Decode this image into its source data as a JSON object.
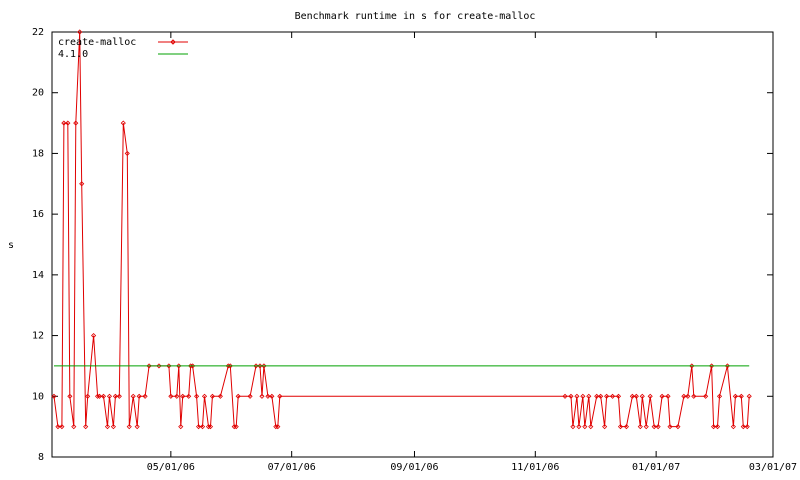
{
  "chart_data": {
    "type": "line",
    "title": "Benchmark runtime in s for create-malloc",
    "y_label": "s",
    "x": [
      "03/03/06",
      "03/05/06",
      "03/07/06",
      "03/08/06",
      "03/10/06",
      "03/11/06",
      "03/13/06",
      "03/14/06",
      "03/16/06",
      "03/17/06",
      "03/19/06",
      "03/20/06",
      "03/23/06",
      "03/25/06",
      "03/26/06",
      "03/28/06",
      "03/30/06",
      "03/31/06",
      "04/02/06",
      "04/03/06",
      "04/05/06",
      "04/07/06",
      "04/09/06",
      "04/10/06",
      "04/12/06",
      "04/14/06",
      "04/15/06",
      "04/18/06",
      "04/20/06",
      "04/25/06",
      "04/30/06",
      "05/01/06",
      "05/04/06",
      "05/05/06",
      "05/06/06",
      "05/07/06",
      "05/10/06",
      "05/11/06",
      "05/12/06",
      "05/14/06",
      "05/15/06",
      "05/17/06",
      "05/18/06",
      "05/20/06",
      "05/21/06",
      "05/22/06",
      "05/26/06",
      "05/30/06",
      "05/31/06",
      "06/02/06",
      "06/03/06",
      "06/04/06",
      "06/10/06",
      "06/13/06",
      "06/15/06",
      "06/16/06",
      "06/17/06",
      "06/19/06",
      "06/21/06",
      "06/23/06",
      "06/24/06",
      "06/25/06",
      "11/16/06",
      "11/19/06",
      "11/20/06",
      "11/22/06",
      "11/23/06",
      "11/25/06",
      "11/26/06",
      "11/28/06",
      "11/29/06",
      "12/02/06",
      "12/04/06",
      "12/06/06",
      "12/07/06",
      "12/10/06",
      "12/13/06",
      "12/14/06",
      "12/17/06",
      "12/20/06",
      "12/22/06",
      "12/24/06",
      "12/25/06",
      "12/27/06",
      "12/29/06",
      "12/31/06",
      "01/02/07",
      "01/04/07",
      "01/07/07",
      "01/08/07",
      "01/12/07",
      "01/15/07",
      "01/17/07",
      "01/19/07",
      "01/20/07",
      "01/26/07",
      "01/29/07",
      "01/30/07",
      "02/01/07",
      "02/02/07",
      "02/06/07",
      "02/09/07",
      "02/10/07",
      "02/13/07",
      "02/14/07",
      "02/16/07",
      "02/17/07"
    ],
    "series": [
      {
        "name": "create-malloc",
        "color": "#e00000",
        "markers": true,
        "values": [
          10,
          9,
          9,
          19,
          19,
          10,
          9,
          19,
          22,
          17,
          9,
          10,
          12,
          10,
          10,
          10,
          9,
          10,
          9,
          10,
          10,
          19,
          18,
          9,
          10,
          9,
          10,
          10,
          11,
          11,
          11,
          10,
          10,
          11,
          9,
          10,
          10,
          11,
          11,
          10,
          9,
          9,
          10,
          9,
          9,
          10,
          10,
          11,
          11,
          9,
          9,
          10,
          10,
          11,
          11,
          10,
          11,
          10,
          10,
          9,
          9,
          10,
          10,
          10,
          9,
          10,
          9,
          10,
          9,
          10,
          9,
          10,
          10,
          9,
          10,
          10,
          10,
          9,
          9,
          10,
          10,
          9,
          10,
          9,
          10,
          9,
          9,
          10,
          10,
          9,
          9,
          10,
          10,
          11,
          10,
          10,
          11,
          9,
          9,
          10,
          11,
          9,
          10,
          10,
          9,
          9,
          10
        ]
      },
      {
        "name": "4.1.0",
        "color": "#00a000",
        "markers": false,
        "x": [
          "03/03/06",
          "02/17/07"
        ],
        "values": [
          11,
          11
        ]
      }
    ],
    "xlim": [
      "03/02/06",
      "03/01/07"
    ],
    "xticks": [
      "05/01/06",
      "07/01/06",
      "09/01/06",
      "11/01/06",
      "01/01/07",
      "03/01/07"
    ],
    "ylim": [
      8,
      22
    ],
    "yticks": [
      8,
      10,
      12,
      14,
      16,
      18,
      20,
      22
    ]
  }
}
